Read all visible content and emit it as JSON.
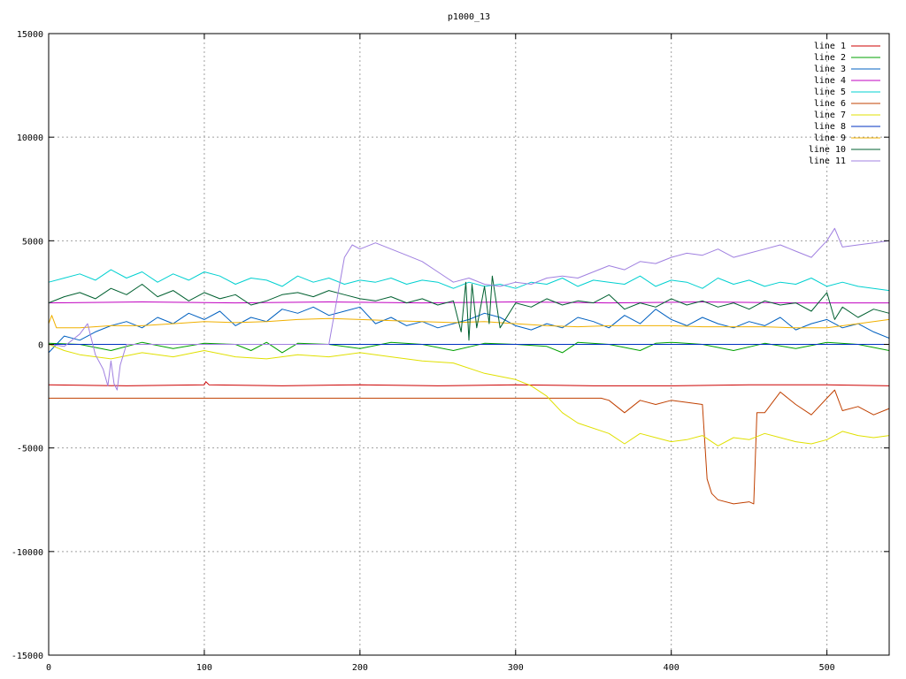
{
  "chart_data": {
    "type": "line",
    "title": "p1000_13",
    "xlabel": "",
    "ylabel": "",
    "xlim": [
      0,
      540
    ],
    "ylim": [
      -15000,
      15000
    ],
    "x_ticks": [
      0,
      100,
      200,
      300,
      400,
      500
    ],
    "y_ticks": [
      -15000,
      -10000,
      -5000,
      0,
      5000,
      10000,
      15000
    ],
    "x_tick_labels": [
      "0",
      "100",
      "200",
      "300",
      "400",
      "500"
    ],
    "y_tick_labels": [
      "-15000",
      "-10000",
      "-5000",
      "0",
      "5000",
      "10000",
      "15000"
    ],
    "grid": true,
    "legend_position": "top-right",
    "series": [
      {
        "name": "line 1",
        "color": "#cc0000",
        "x": [
          0,
          50,
          100,
          101,
          103,
          150,
          200,
          250,
          300,
          350,
          400,
          450,
          500,
          540
        ],
        "y": [
          -1950,
          -2000,
          -1950,
          -1800,
          -1950,
          -2000,
          -1950,
          -2000,
          -1950,
          -2000,
          -2000,
          -1950,
          -1950,
          -2000
        ]
      },
      {
        "name": "line 2",
        "color": "#00a000",
        "x": [
          0,
          20,
          40,
          60,
          80,
          100,
          120,
          130,
          140,
          150,
          160,
          180,
          200,
          220,
          240,
          260,
          280,
          300,
          320,
          330,
          340,
          360,
          380,
          390,
          400,
          420,
          440,
          460,
          480,
          500,
          520,
          540
        ],
        "y": [
          50,
          0,
          -300,
          100,
          -200,
          50,
          0,
          -300,
          100,
          -400,
          50,
          0,
          -200,
          100,
          0,
          -300,
          50,
          0,
          -100,
          -400,
          100,
          0,
          -300,
          50,
          100,
          0,
          -300,
          50,
          -200,
          100,
          0,
          -300
        ]
      },
      {
        "name": "line 3",
        "color": "#0060c0",
        "x": [
          0,
          5,
          10,
          20,
          30,
          40,
          50,
          60,
          70,
          80,
          90,
          100,
          110,
          120,
          130,
          140,
          150,
          160,
          170,
          180,
          190,
          200,
          210,
          220,
          230,
          240,
          250,
          260,
          270,
          280,
          290,
          300,
          310,
          320,
          330,
          340,
          350,
          360,
          370,
          380,
          390,
          400,
          410,
          420,
          430,
          440,
          450,
          460,
          470,
          480,
          490,
          500,
          510,
          520,
          530,
          540
        ],
        "y": [
          -400,
          0,
          400,
          200,
          600,
          900,
          1100,
          800,
          1300,
          1000,
          1500,
          1200,
          1600,
          900,
          1300,
          1100,
          1700,
          1500,
          1800,
          1400,
          1600,
          1800,
          1000,
          1300,
          900,
          1100,
          800,
          1000,
          1200,
          1500,
          1300,
          900,
          700,
          1000,
          800,
          1300,
          1100,
          800,
          1400,
          1000,
          1700,
          1200,
          900,
          1300,
          1000,
          800,
          1100,
          900,
          1300,
          700,
          1000,
          1200,
          800,
          1000,
          600,
          300
        ]
      },
      {
        "name": "line 4",
        "color": "#c000c0",
        "x": [
          0,
          60,
          120,
          180,
          240,
          300,
          360,
          420,
          480,
          540
        ],
        "y": [
          2000,
          2050,
          2000,
          2050,
          2000,
          2050,
          2000,
          2050,
          2000,
          2000
        ]
      },
      {
        "name": "line 5",
        "color": "#00d0d0",
        "x": [
          0,
          10,
          20,
          30,
          40,
          50,
          60,
          70,
          80,
          90,
          100,
          110,
          120,
          130,
          140,
          150,
          160,
          170,
          180,
          190,
          200,
          210,
          220,
          230,
          240,
          250,
          260,
          270,
          280,
          290,
          300,
          310,
          320,
          330,
          340,
          350,
          360,
          370,
          380,
          390,
          400,
          410,
          420,
          430,
          440,
          450,
          460,
          470,
          480,
          490,
          500,
          510,
          520,
          530,
          540
        ],
        "y": [
          3000,
          3200,
          3400,
          3100,
          3600,
          3200,
          3500,
          3000,
          3400,
          3100,
          3500,
          3300,
          2900,
          3200,
          3100,
          2800,
          3300,
          3000,
          3200,
          2900,
          3100,
          3000,
          3200,
          2900,
          3100,
          3000,
          2700,
          3000,
          2800,
          2900,
          2700,
          3000,
          2900,
          3200,
          2800,
          3100,
          3000,
          2900,
          3300,
          2800,
          3100,
          3000,
          2700,
          3200,
          2900,
          3100,
          2800,
          3000,
          2900,
          3200,
          2800,
          3000,
          2800,
          2700,
          2600
        ]
      },
      {
        "name": "line 6",
        "color": "#c04000",
        "x": [
          0,
          100,
          200,
          300,
          340,
          355,
          360,
          370,
          380,
          390,
          400,
          410,
          420,
          423,
          426,
          430,
          440,
          450,
          453,
          455,
          460,
          470,
          480,
          490,
          500,
          505,
          510,
          520,
          530,
          540
        ],
        "y": [
          -2600,
          -2600,
          -2600,
          -2600,
          -2600,
          -2600,
          -2700,
          -3300,
          -2700,
          -2900,
          -2700,
          -2800,
          -2900,
          -6500,
          -7200,
          -7500,
          -7700,
          -7600,
          -7700,
          -3300,
          -3300,
          -2300,
          -2900,
          -3400,
          -2600,
          -2200,
          -3200,
          -3000,
          -3400,
          -3100
        ]
      },
      {
        "name": "line 7",
        "color": "#e0e000",
        "x": [
          0,
          10,
          20,
          40,
          60,
          80,
          100,
          120,
          140,
          160,
          180,
          200,
          220,
          240,
          260,
          280,
          300,
          310,
          320,
          330,
          340,
          360,
          370,
          380,
          390,
          400,
          410,
          420,
          430,
          440,
          450,
          460,
          470,
          480,
          490,
          500,
          510,
          520,
          530,
          540
        ],
        "y": [
          0,
          -300,
          -500,
          -700,
          -400,
          -600,
          -300,
          -600,
          -700,
          -500,
          -600,
          -400,
          -600,
          -800,
          -900,
          -1400,
          -1700,
          -2000,
          -2500,
          -3300,
          -3800,
          -4300,
          -4800,
          -4300,
          -4500,
          -4700,
          -4600,
          -4400,
          -4900,
          -4500,
          -4600,
          -4300,
          -4500,
          -4700,
          -4800,
          -4600,
          -4200,
          -4400,
          -4500,
          -4400
        ]
      },
      {
        "name": "line 8",
        "color": "#0030c0",
        "x": [
          0,
          60,
          120,
          180,
          240,
          300,
          360,
          420,
          480,
          540
        ],
        "y": [
          0,
          0,
          0,
          0,
          0,
          0,
          0,
          0,
          0,
          0
        ]
      },
      {
        "name": "line 9",
        "color": "#f0b000",
        "x": [
          0,
          2,
          5,
          20,
          40,
          60,
          80,
          100,
          120,
          140,
          160,
          180,
          200,
          220,
          240,
          260,
          280,
          300,
          320,
          340,
          360,
          380,
          400,
          420,
          440,
          460,
          480,
          500,
          520,
          540
        ],
        "y": [
          1000,
          1400,
          800,
          800,
          900,
          900,
          1000,
          1100,
          1050,
          1100,
          1200,
          1250,
          1200,
          1150,
          1100,
          1050,
          1100,
          1000,
          900,
          850,
          900,
          900,
          900,
          850,
          850,
          850,
          800,
          800,
          1000,
          1200
        ]
      },
      {
        "name": "line 10",
        "color": "#006030",
        "x": [
          0,
          10,
          20,
          30,
          40,
          50,
          60,
          70,
          80,
          90,
          100,
          110,
          120,
          130,
          140,
          150,
          160,
          170,
          180,
          190,
          200,
          210,
          220,
          230,
          240,
          250,
          260,
          265,
          268,
          270,
          272,
          275,
          278,
          280,
          283,
          285,
          290,
          300,
          310,
          320,
          330,
          340,
          350,
          360,
          370,
          380,
          390,
          400,
          410,
          420,
          430,
          440,
          450,
          460,
          470,
          480,
          490,
          500,
          505,
          510,
          520,
          530,
          540
        ],
        "y": [
          2000,
          2300,
          2500,
          2200,
          2700,
          2400,
          2900,
          2300,
          2600,
          2100,
          2500,
          2200,
          2400,
          1900,
          2100,
          2400,
          2500,
          2300,
          2600,
          2400,
          2200,
          2100,
          2300,
          2000,
          2200,
          1900,
          2100,
          600,
          3000,
          200,
          2900,
          800,
          2000,
          2800,
          1000,
          3300,
          800,
          2000,
          1800,
          2200,
          1900,
          2100,
          2000,
          2400,
          1700,
          2000,
          1800,
          2200,
          1900,
          2100,
          1800,
          2000,
          1700,
          2100,
          1900,
          2000,
          1600,
          2500,
          1200,
          1800,
          1300,
          1700,
          1500
        ]
      },
      {
        "name": "line 11",
        "color": "#a080e0",
        "x": [
          0,
          10,
          20,
          25,
          30,
          35,
          38,
          40,
          42,
          44,
          46,
          50,
          60,
          80,
          100,
          120,
          140,
          160,
          180,
          190,
          195,
          200,
          210,
          220,
          230,
          240,
          250,
          260,
          270,
          280,
          290,
          300,
          310,
          320,
          330,
          340,
          350,
          360,
          370,
          380,
          390,
          400,
          410,
          420,
          430,
          440,
          450,
          460,
          470,
          480,
          490,
          500,
          505,
          510,
          520,
          530,
          540
        ],
        "y": [
          0,
          -100,
          500,
          1000,
          -500,
          -1200,
          -2000,
          -800,
          -1900,
          -2200,
          -1000,
          0,
          0,
          0,
          0,
          0,
          0,
          0,
          0,
          4200,
          4800,
          4600,
          4900,
          4600,
          4300,
          4000,
          3500,
          3000,
          3200,
          2900,
          2800,
          3000,
          2900,
          3200,
          3300,
          3200,
          3500,
          3800,
          3600,
          4000,
          3900,
          4200,
          4400,
          4300,
          4600,
          4200,
          4400,
          4600,
          4800,
          4500,
          4200,
          5000,
          5600,
          4700,
          4800,
          4900,
          5000
        ]
      }
    ]
  }
}
